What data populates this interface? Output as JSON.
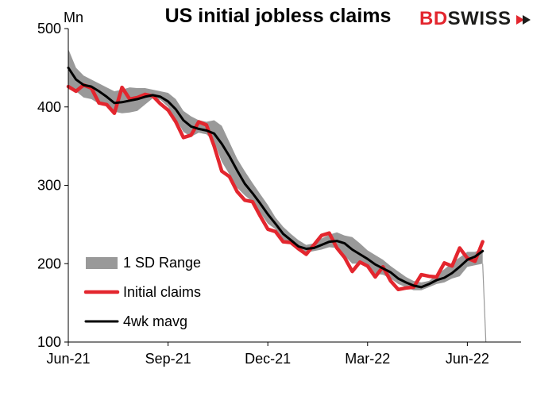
{
  "header": {
    "title": "US initial jobless claims",
    "unit": "Mn"
  },
  "logo": {
    "part1": "BD",
    "part2": "SWISS"
  },
  "colors": {
    "initial_claims": "#e3262e",
    "mavg": "#000000",
    "sd_range": "#999999",
    "axis": "#000000"
  },
  "chart_data": {
    "type": "line",
    "title": "US initial jobless claims",
    "ylabel": "Mn",
    "ylim": [
      100,
      500
    ],
    "yticks": [
      100,
      200,
      300,
      400,
      500
    ],
    "x_ticks": [
      "Jun-21",
      "Sep-21",
      "Dec-21",
      "Mar-22",
      "Jun-22"
    ],
    "x_tick_weeks": [
      0,
      13,
      26,
      39,
      52
    ],
    "grid": false,
    "legend": "bottom-left",
    "series": [
      {
        "name": "Initial claims",
        "values": [
          426,
          420,
          428,
          424,
          405,
          403,
          392,
          425,
          410,
          412,
          416,
          414,
          404,
          396,
          381,
          361,
          364,
          381,
          377,
          350,
          318,
          311,
          292,
          281,
          279,
          261,
          244,
          241,
          228,
          227,
          219,
          212,
          224,
          236,
          239,
          220,
          208,
          190,
          202,
          197,
          183,
          196,
          178,
          167,
          169,
          170,
          186,
          184,
          183,
          201,
          197,
          220,
          207,
          203,
          228
        ]
      },
      {
        "name": "4wk mavg",
        "values": [
          450,
          435,
          428,
          426,
          420,
          413,
          405,
          406,
          408,
          410,
          413,
          415,
          413,
          407,
          397,
          383,
          375,
          372,
          370,
          366,
          353,
          337,
          319,
          302,
          290,
          277,
          263,
          251,
          238,
          230,
          222,
          219,
          220,
          224,
          228,
          229,
          226,
          218,
          212,
          206,
          199,
          194,
          189,
          181,
          176,
          172,
          170,
          174,
          179,
          182,
          188,
          196,
          205,
          209,
          216
        ]
      },
      {
        "name": "1 SD Range",
        "lower": [
          423,
          420,
          412,
          410,
          404,
          401,
          394,
          392,
          393,
          395,
          403,
          411,
          409,
          400,
          385,
          368,
          362,
          367,
          365,
          356,
          330,
          314,
          297,
          287,
          279,
          265,
          251,
          244,
          231,
          226,
          220,
          214,
          216,
          218,
          221,
          220,
          210,
          200,
          200,
          197,
          187,
          186,
          181,
          174,
          170,
          166,
          166,
          170,
          174,
          176,
          181,
          184,
          196,
          198,
          200
        ],
        "upper": [
          474,
          450,
          440,
          435,
          430,
          425,
          420,
          422,
          425,
          424,
          424,
          422,
          420,
          418,
          410,
          395,
          388,
          383,
          381,
          383,
          376,
          355,
          334,
          318,
          303,
          289,
          275,
          259,
          247,
          238,
          230,
          224,
          226,
          232,
          237,
          240,
          236,
          234,
          226,
          217,
          211,
          205,
          197,
          190,
          183,
          178,
          176,
          178,
          186,
          193,
          201,
          208,
          215,
          215,
          219
        ]
      }
    ]
  }
}
